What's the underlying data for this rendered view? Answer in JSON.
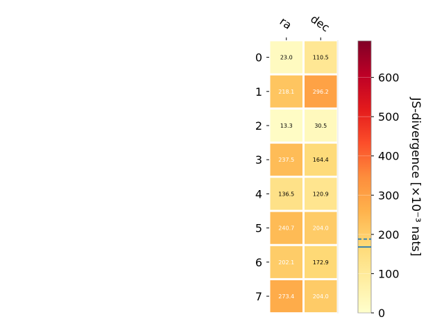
{
  "chart_data": {
    "type": "heatmap",
    "columns": [
      "ra",
      "dec"
    ],
    "rows": [
      "0",
      "1",
      "2",
      "3",
      "4",
      "5",
      "6",
      "7"
    ],
    "values": [
      [
        23.0,
        110.5
      ],
      [
        218.1,
        296.2
      ],
      [
        13.3,
        30.5
      ],
      [
        237.5,
        164.4
      ],
      [
        136.5,
        120.9
      ],
      [
        240.7,
        204.0
      ],
      [
        202.1,
        172.9
      ],
      [
        273.4,
        204.0
      ]
    ],
    "value_labels": [
      [
        "23.0",
        "110.5"
      ],
      [
        "218.1",
        "296.2"
      ],
      [
        "13.3",
        "30.5"
      ],
      [
        "237.5",
        "164.4"
      ],
      [
        "136.5",
        "120.9"
      ],
      [
        "240.7",
        "204.0"
      ],
      [
        "202.1",
        "172.9"
      ],
      [
        "273.4",
        "204.0"
      ]
    ],
    "colorbar": {
      "label": "JS-divergence [×10⁻³ nats]",
      "range": [
        0,
        693
      ],
      "ticks": [
        0,
        100,
        200,
        300,
        400,
        500,
        600
      ],
      "tick_labels": [
        "0",
        "100",
        "200",
        "300",
        "400",
        "500",
        "600"
      ],
      "colormap": "YlOrRd",
      "markers": [
        {
          "value": 188,
          "style": "dashed",
          "color": "#1f77b4"
        },
        {
          "value": 168,
          "style": "solid",
          "color": "#1f77b4"
        }
      ]
    }
  }
}
